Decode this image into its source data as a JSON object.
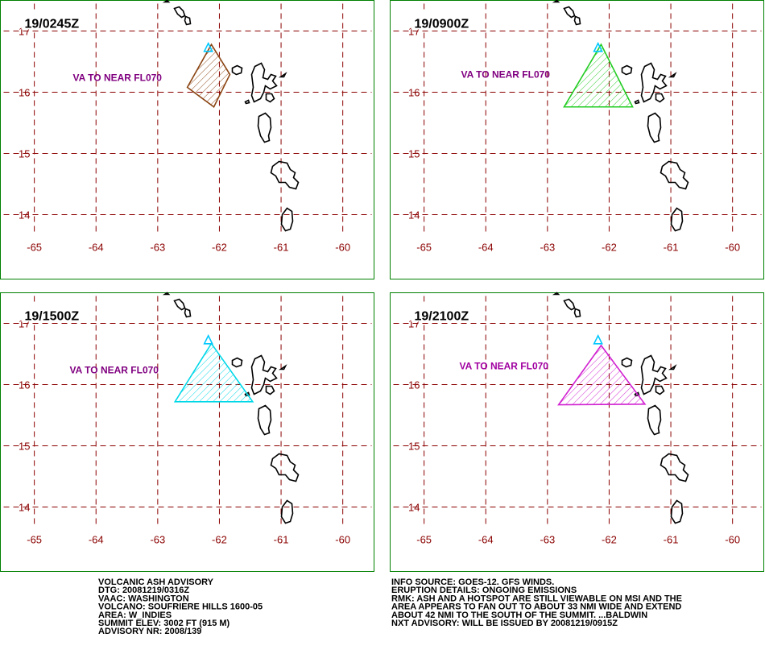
{
  "map": {
    "xlim": [
      -65.55,
      -59.48
    ],
    "ylim": [
      13.5,
      17.5
    ],
    "lon_ticks": [
      -65,
      -64,
      -63,
      -62,
      -61,
      -60
    ],
    "lat_ticks": [
      14,
      15,
      16,
      17
    ],
    "grid_color": "#8b0000",
    "border_color": "#008000",
    "volcano": {
      "lon": -62.18,
      "lat": 16.72,
      "color": "#00c8ff"
    }
  },
  "panels": [
    {
      "time": "19/0245Z",
      "label": "VA TO NEAR FL070",
      "label_color": "#800080",
      "color": "#8b4513",
      "polygon": {
        "lon": [
          -62.13,
          -61.83,
          -62.09,
          -62.52
        ],
        "lat": [
          16.78,
          16.29,
          15.76,
          16.08
        ]
      }
    },
    {
      "time": "19/0900Z",
      "label": "VA TO NEAR FL070",
      "label_color": "#800080",
      "color": "#22cc22",
      "polygon": {
        "lon": [
          -62.13,
          -61.62,
          -62.73
        ],
        "lat": [
          16.78,
          15.76,
          15.76
        ]
      }
    },
    {
      "time": "19/1500Z",
      "label": "VA TO NEAR FL070",
      "label_color": "#800080",
      "color": "#00d8e8",
      "polygon": {
        "lon": [
          -62.13,
          -61.46,
          -62.72
        ],
        "lat": [
          16.67,
          15.72,
          15.72
        ]
      }
    },
    {
      "time": "19/2100Z",
      "label": "VA TO NEAR FL070",
      "label_color": "#a000a0",
      "color": "#d020d0",
      "polygon": {
        "lon": [
          -62.13,
          -61.42,
          -62.82
        ],
        "lat": [
          16.64,
          15.68,
          15.67
        ]
      }
    }
  ],
  "advisory": {
    "left": [
      "VOLCANIC ASH ADVISORY",
      "DTG: 20081219/0316Z",
      "VAAC: WASHINGTON",
      "VOLCANO: SOUFRIERE HILLS 1600-05",
      "AREA: W_INDIES",
      "SUMMIT ELEV: 3002 FT (915 M)",
      "ADVISORY NR: 2008/139"
    ],
    "right": [
      "INFO SOURCE: GOES-12. GFS WINDS.",
      "ERUPTION DETAILS: ONGOING EMISSIONS",
      "RMK: ASH AND A HOTSPOT ARE STILL VIEWABLE ON MSI AND THE",
      "AREA APPEARS TO FAN OUT TO ABOUT 33 NMI WIDE AND EXTEND",
      "ABOUT 42 NMI TO THE SOUTH OF THE SUMMIT. ...BALDWIN",
      "NXT ADVISORY: WILL BE ISSUED BY 20081219/0915Z"
    ]
  }
}
